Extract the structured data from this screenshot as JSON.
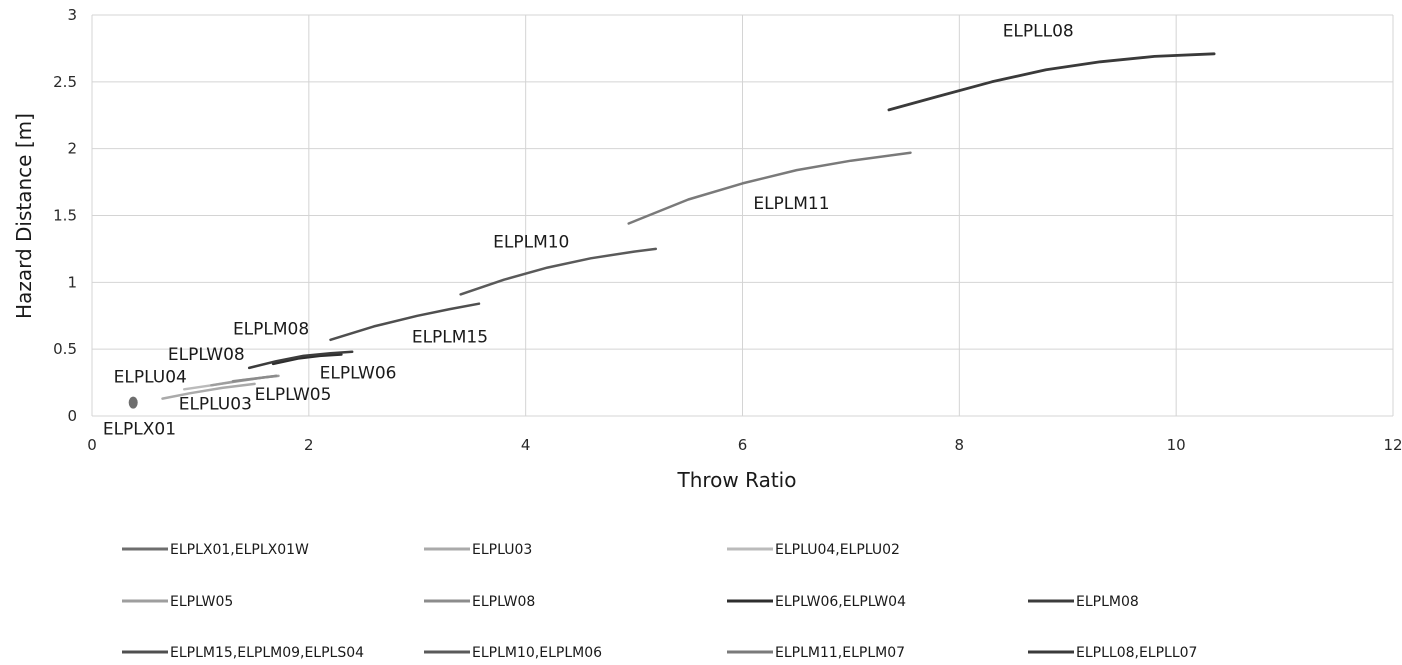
{
  "chart_data": {
    "type": "line",
    "title": "",
    "xlabel": "Throw Ratio",
    "ylabel": "Hazard Distance [m]",
    "xlim": [
      0,
      12
    ],
    "ylim": [
      0,
      3
    ],
    "x_ticks": [
      "0",
      "2",
      "4",
      "6",
      "8",
      "10",
      "12"
    ],
    "y_ticks": [
      "0",
      "0.5",
      "1",
      "1.5",
      "2",
      "2.5",
      "3"
    ],
    "grid": true,
    "legend_position": "bottom",
    "series": [
      {
        "name": "ELPLX01,ELPLX01W",
        "color": "#6e6e6e",
        "width": 3,
        "marker": true,
        "x": [
          0.38
        ],
        "y": [
          0.1
        ]
      },
      {
        "name": "ELPLU03",
        "color": "#aaaaaa",
        "width": 2.5,
        "x": [
          0.65,
          0.9,
          1.2,
          1.5
        ],
        "y": [
          0.13,
          0.17,
          0.21,
          0.24
        ]
      },
      {
        "name": "ELPLU04,ELPLU02",
        "color": "#bbbbbb",
        "width": 2.5,
        "x": [
          0.85,
          1.1,
          1.4,
          1.7
        ],
        "y": [
          0.2,
          0.23,
          0.27,
          0.3
        ]
      },
      {
        "name": "ELPLW05",
        "color": "#9e9e9e",
        "width": 2.5,
        "x": [
          1.1,
          1.35,
          1.6,
          1.72
        ],
        "y": [
          0.23,
          0.26,
          0.29,
          0.3
        ]
      },
      {
        "name": "ELPLW08",
        "color": "#8c8c8c",
        "width": 2.5,
        "x": [
          1.3,
          1.5,
          1.7
        ],
        "y": [
          0.26,
          0.28,
          0.3
        ]
      },
      {
        "name": "ELPLW06,ELPLW04",
        "color": "#2e2e2e",
        "width": 2.5,
        "x": [
          1.67,
          1.9,
          2.1,
          2.3
        ],
        "y": [
          0.39,
          0.43,
          0.45,
          0.46
        ]
      },
      {
        "name": "ELPLM08",
        "color": "#3c3c3c",
        "width": 2.5,
        "x": [
          1.45,
          1.7,
          1.95,
          2.2,
          2.4
        ],
        "y": [
          0.36,
          0.41,
          0.45,
          0.47,
          0.48
        ]
      },
      {
        "name": "ELPLM15,ELPLM09,ELPLS04",
        "color": "#4f4f4f",
        "width": 2.5,
        "x": [
          2.2,
          2.6,
          3.0,
          3.3,
          3.57
        ],
        "y": [
          0.57,
          0.67,
          0.75,
          0.8,
          0.84
        ]
      },
      {
        "name": "ELPLM10,ELPLM06",
        "color": "#5a5a5a",
        "width": 2.5,
        "x": [
          3.4,
          3.8,
          4.2,
          4.6,
          5.0,
          5.2
        ],
        "y": [
          0.91,
          1.02,
          1.11,
          1.18,
          1.23,
          1.25
        ]
      },
      {
        "name": "ELPLM11,ELPLM07",
        "color": "#7a7a7a",
        "width": 2.5,
        "x": [
          4.95,
          5.5,
          6.0,
          6.5,
          7.0,
          7.55
        ],
        "y": [
          1.44,
          1.62,
          1.74,
          1.84,
          1.91,
          1.97
        ]
      },
      {
        "name": "ELPLL08,ELPLL07",
        "color": "#3a3a3a",
        "width": 2.8,
        "x": [
          7.35,
          7.8,
          8.3,
          8.8,
          9.3,
          9.8,
          10.35
        ],
        "y": [
          2.29,
          2.39,
          2.5,
          2.59,
          2.65,
          2.69,
          2.71
        ]
      }
    ],
    "annotations": [
      {
        "text": "ELPLL08",
        "x": 8.4,
        "y": 2.84
      },
      {
        "text": "ELPLM11",
        "x": 6.1,
        "y": 1.55
      },
      {
        "text": "ELPLM10",
        "x": 3.7,
        "y": 1.26
      },
      {
        "text": "ELPLM08",
        "x": 1.3,
        "y": 0.61
      },
      {
        "text": "ELPLM15",
        "x": 2.95,
        "y": 0.55
      },
      {
        "text": "ELPLW08",
        "x": 0.7,
        "y": 0.42
      },
      {
        "text": "ELPLW06",
        "x": 2.1,
        "y": 0.28
      },
      {
        "text": "ELPLU04",
        "x": 0.2,
        "y": 0.25
      },
      {
        "text": "ELPLW05",
        "x": 1.5,
        "y": 0.12
      },
      {
        "text": "ELPLU03",
        "x": 0.8,
        "y": 0.05
      },
      {
        "text": "ELPLX01",
        "x": 0.1,
        "y": -0.14
      }
    ]
  }
}
